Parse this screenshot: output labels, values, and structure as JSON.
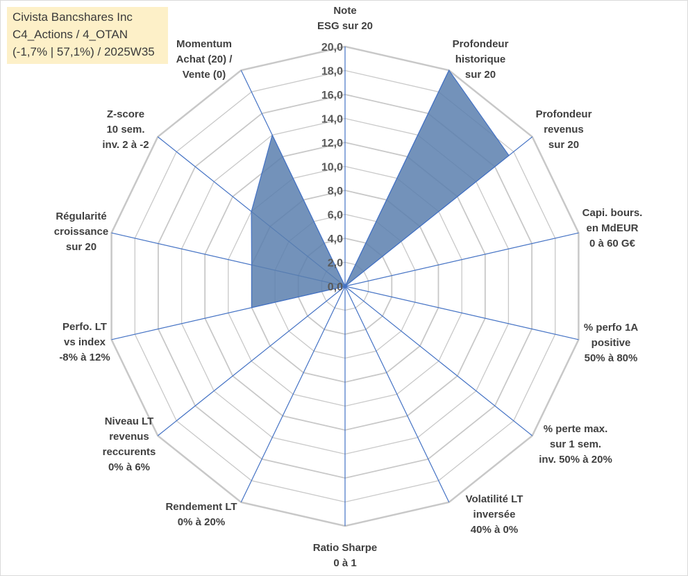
{
  "title": {
    "line1": "Civista Bancshares Inc",
    "line2": "C4_Actions / 4_OTAN",
    "line3": "(-1,7% | 57,1%) / 2025W35"
  },
  "chart_data": {
    "type": "radar",
    "rmin": 0,
    "rmax": 20,
    "tick_step": 2,
    "tick_labels": [
      "0,0",
      "2,0",
      "4,0",
      "6,0",
      "8,0",
      "10,0",
      "12,0",
      "14,0",
      "16,0",
      "18,0",
      "20,0"
    ],
    "grid": true,
    "series_color": "#5b7fae",
    "axes": [
      {
        "label": [
          "Note",
          "ESG sur 20"
        ],
        "value": 0
      },
      {
        "label": [
          "Profondeur",
          "historique",
          "sur 20"
        ],
        "value": 20
      },
      {
        "label": [
          "Profondeur",
          "revenus",
          "sur 20"
        ],
        "value": 17.5
      },
      {
        "label": [
          "Capi. bours.",
          "en MdEUR",
          "0 à 60 G€"
        ],
        "value": 0
      },
      {
        "label": [
          "% perfo 1A",
          "positive",
          "50% à 80%"
        ],
        "value": 0
      },
      {
        "label": [
          "% perte max.",
          "sur 1 sem.",
          "inv. 50% à 20%"
        ],
        "value": 0
      },
      {
        "label": [
          "Volatilité LT",
          "inversée",
          "40% à 0%"
        ],
        "value": 0
      },
      {
        "label": [
          "Ratio Sharpe",
          "0 à 1"
        ],
        "value": 0
      },
      {
        "label": [
          "Rendement LT",
          "0% à 20%"
        ],
        "value": 0
      },
      {
        "label": [
          "Niveau LT",
          "revenus",
          "reccurents",
          "0% à 6%"
        ],
        "value": 0
      },
      {
        "label": [
          "Perfo. LT",
          "vs index",
          "-8% à 12%"
        ],
        "value": 8
      },
      {
        "label": [
          "Régularité",
          "croissance",
          "sur 20"
        ],
        "value": 8
      },
      {
        "label": [
          "Z-score",
          "10 sem.",
          "inv. 2 à -2"
        ],
        "value": 10
      },
      {
        "label": [
          "Momentum",
          "Achat (20) /",
          "Vente (0)"
        ],
        "value": 14
      }
    ]
  }
}
